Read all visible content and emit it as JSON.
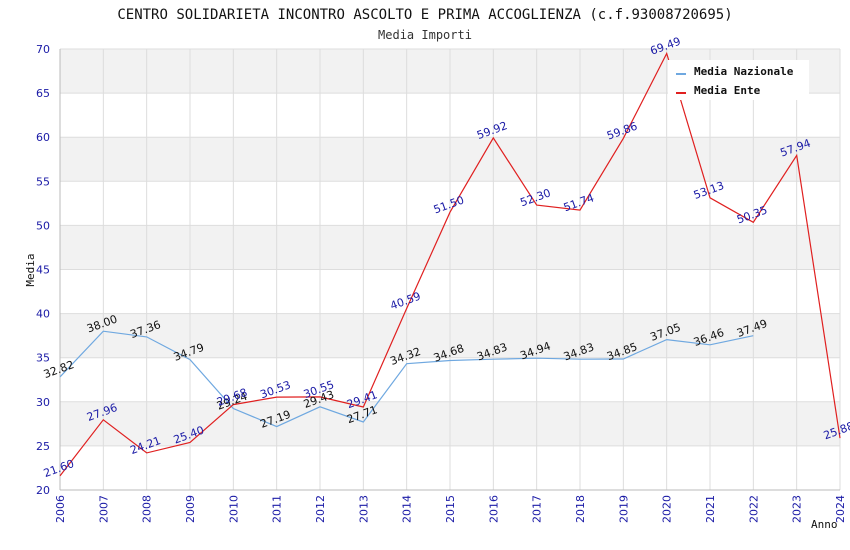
{
  "chart_data": {
    "type": "line",
    "title": "CENTRO SOLIDARIETA INCONTRO ASCOLTO E PRIMA ACCOGLIENZA (c.f.93008720695)",
    "subtitle": "Media Importi",
    "xlabel": "Anno",
    "ylabel": "Media",
    "ylim": [
      20,
      70
    ],
    "yticks": [
      20,
      25,
      30,
      35,
      40,
      45,
      50,
      55,
      60,
      65,
      70
    ],
    "x": [
      "2006",
      "2007",
      "2008",
      "2009",
      "2010",
      "2011",
      "2012",
      "2013",
      "2014",
      "2015",
      "2016",
      "2017",
      "2018",
      "2019",
      "2020",
      "2021",
      "2022",
      "2023",
      "2024"
    ],
    "grid": true,
    "legend_position": "top-right",
    "series": [
      {
        "name": "Media Nazionale",
        "color": "#6fa8e0",
        "values": [
          32.82,
          38.0,
          37.36,
          34.79,
          29.24,
          27.19,
          29.43,
          27.71,
          34.32,
          34.68,
          34.83,
          34.94,
          34.83,
          34.85,
          37.05,
          36.46,
          37.49,
          null,
          null
        ],
        "labels": [
          "32.82",
          "38.00",
          "37.36",
          "34.79",
          "29.24",
          "27.19",
          "29.43",
          "27.71",
          "34.32",
          "34.68",
          "34.83",
          "34.94",
          "34.83",
          "34.85",
          "37.05",
          "36.46",
          "37.49",
          "",
          ""
        ]
      },
      {
        "name": "Media Ente",
        "color": "#e02020",
        "values": [
          21.6,
          27.96,
          24.21,
          25.4,
          29.68,
          30.53,
          30.55,
          29.41,
          40.59,
          51.5,
          59.92,
          52.3,
          51.74,
          59.86,
          69.49,
          53.13,
          50.35,
          57.94,
          25.88
        ],
        "labels": [
          "21.60",
          "27.96",
          "24.21",
          "25.40",
          "29.68",
          "30.53",
          "30.55",
          "29.41",
          "40.59",
          "51.50",
          "59.92",
          "52.30",
          "51.74",
          "59.86",
          "69.49",
          "53.13",
          "50.35",
          "57.94",
          "25.88"
        ]
      }
    ]
  }
}
